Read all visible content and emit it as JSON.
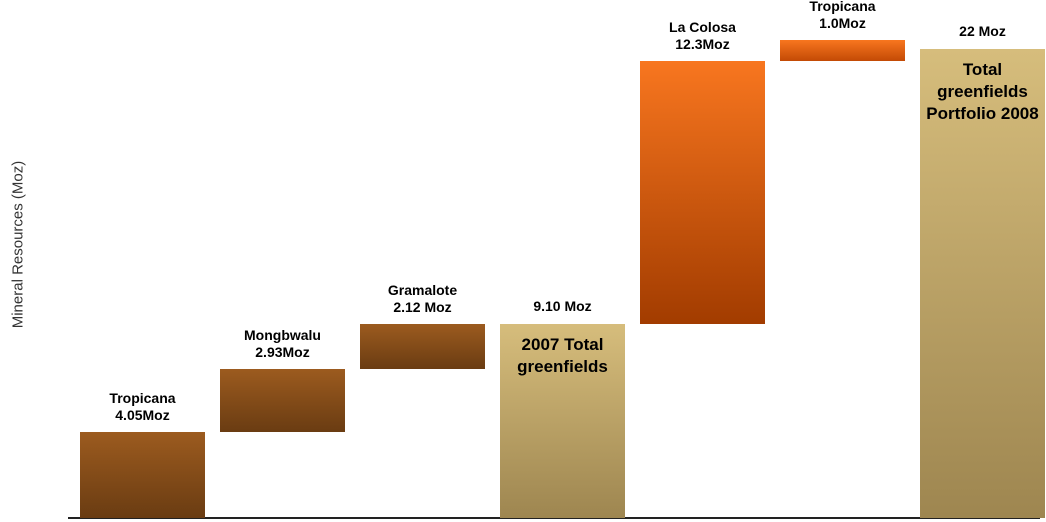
{
  "chart_data": {
    "type": "waterfall",
    "y_label": "Mineral Resources (Moz)",
    "categories": [
      "Tropicana",
      "Mongbwalu",
      "Gramalote",
      "2007 Total greenfields",
      "La Colosa",
      "Tropicana",
      "Total greenfields Portfolio 2008"
    ],
    "values": [
      4.05,
      2.93,
      2.12,
      9.1,
      12.3,
      1.0,
      22
    ],
    "value_labels": [
      "4.05Moz",
      "2.93Moz",
      "2.12 Moz",
      "9.10 Moz",
      "12.3Moz",
      "1.0Moz",
      "22 Moz"
    ],
    "totals": [
      false,
      false,
      false,
      true,
      false,
      false,
      true
    ],
    "colors": [
      [
        "#9c5b1f",
        "#6a3c12"
      ],
      [
        "#9c5b1f",
        "#6a3c12"
      ],
      [
        "#9c5b1f",
        "#6a3c12"
      ],
      [
        "#d6bd7c",
        "#9e8650"
      ],
      [
        "#f8761f",
        "#a23c00"
      ],
      [
        "#f8761f",
        "#c34a05"
      ],
      [
        "#d6bd7c",
        "#9e8650"
      ]
    ],
    "ylim": [
      0,
      22.4
    ]
  }
}
